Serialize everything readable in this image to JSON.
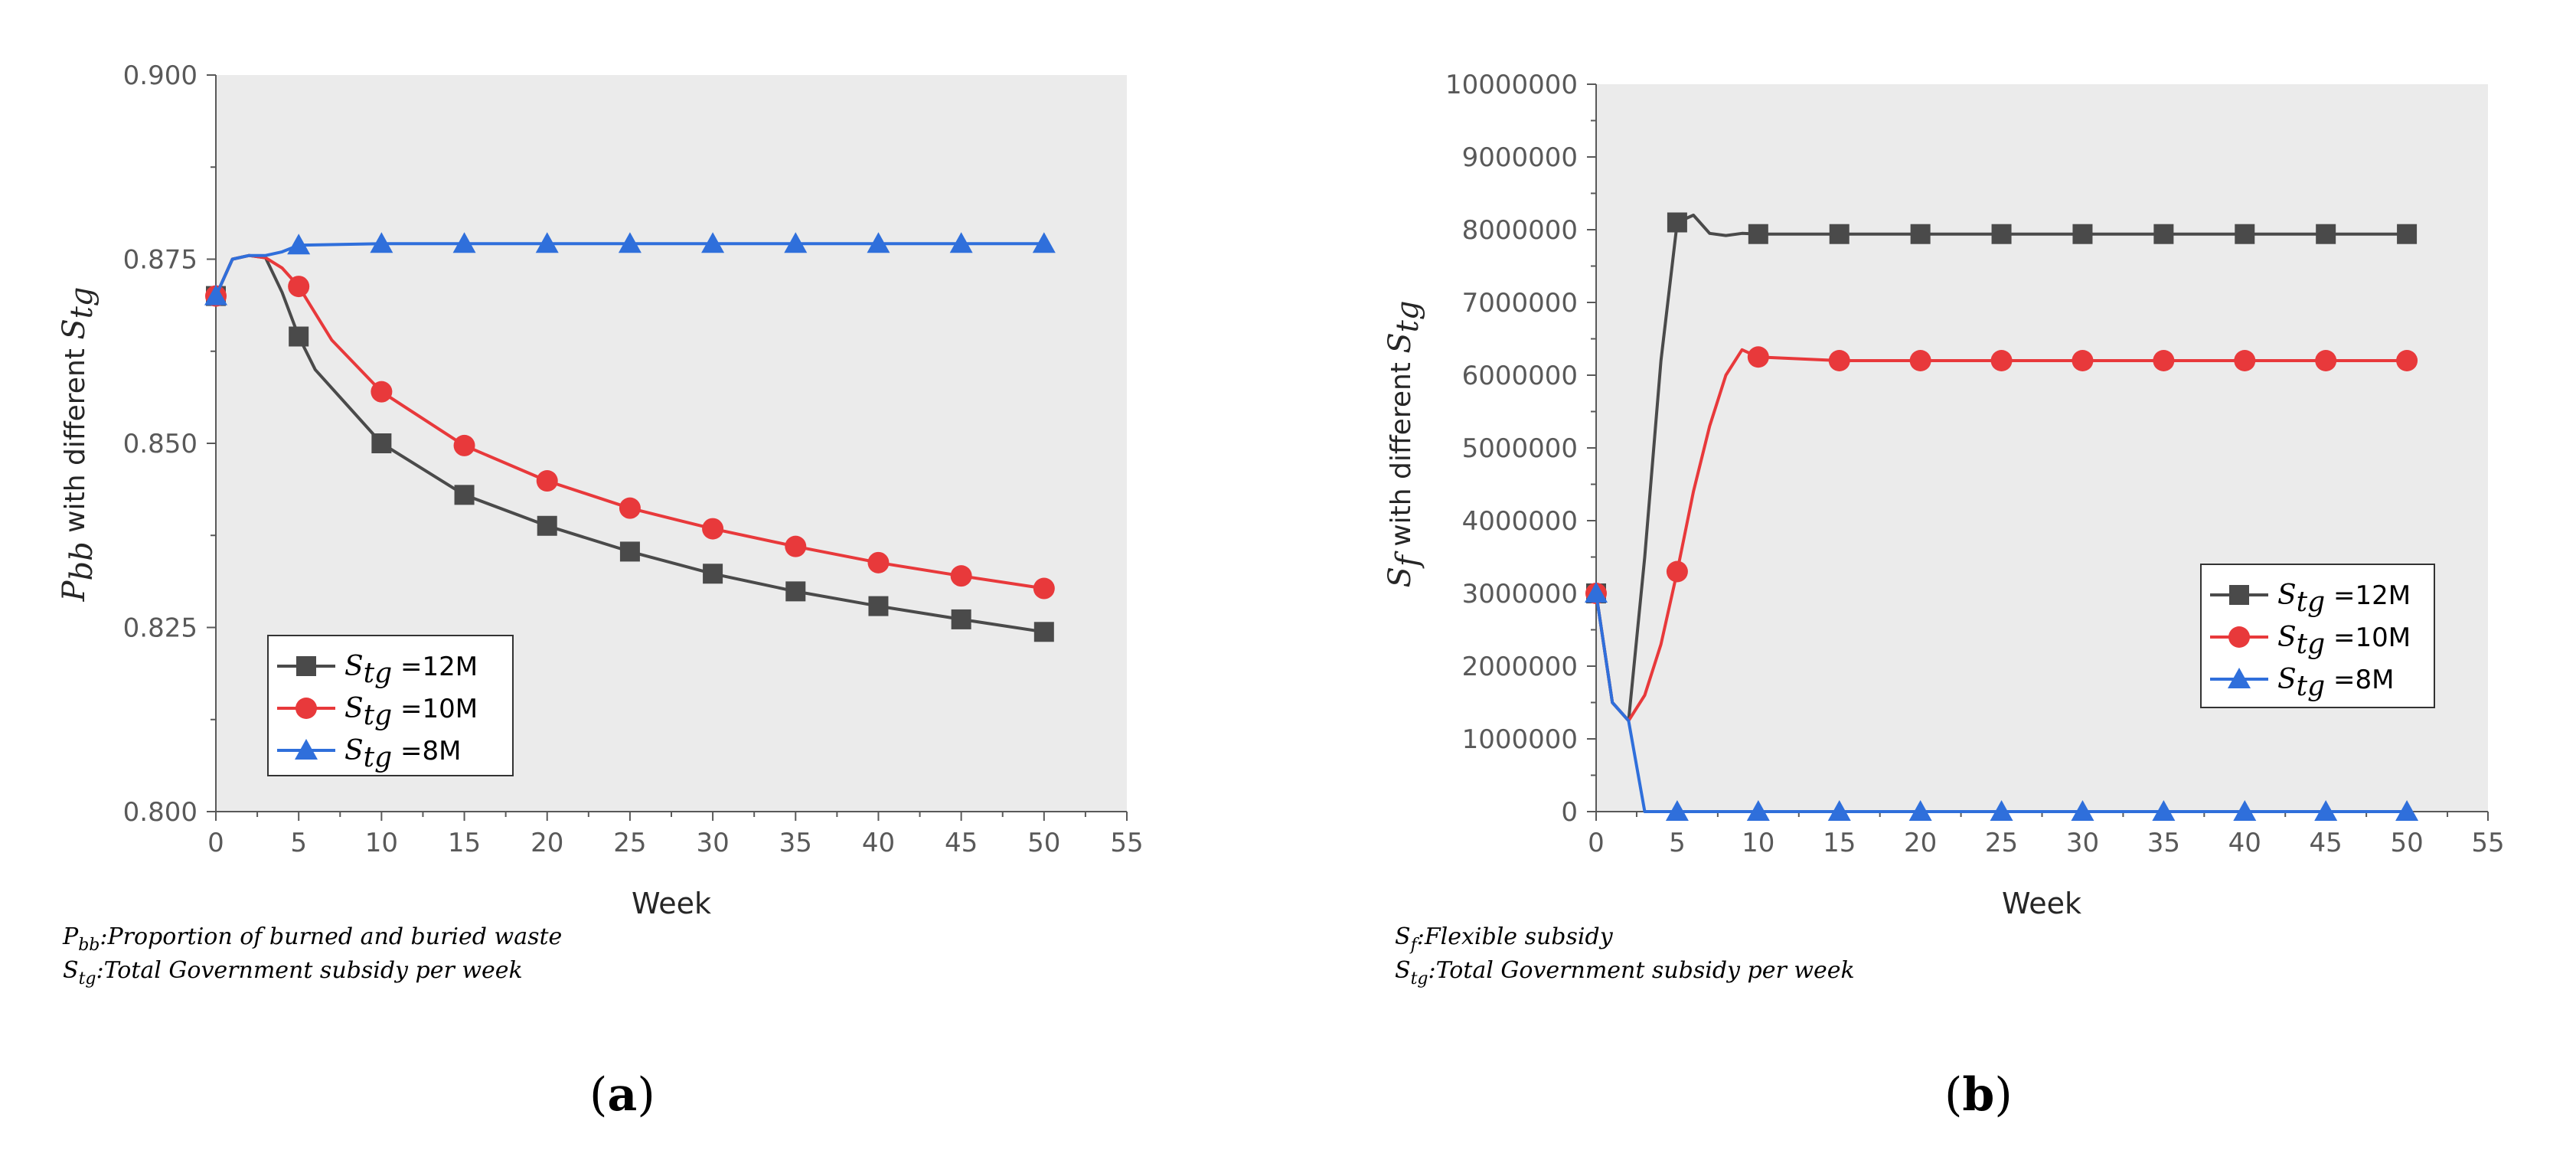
{
  "chart_data": [
    {
      "type": "line",
      "panel_label": "(a)",
      "panel_letter": "a",
      "xlabel": "Week",
      "ylabel": {
        "symbol": "P",
        "sub": "bb",
        "text": " with different ",
        "symbol2": "S",
        "sub2": "tg"
      },
      "xlim": [
        0,
        55
      ],
      "ylim": [
        0.8,
        0.9
      ],
      "xticks": [
        0,
        5,
        10,
        15,
        20,
        25,
        30,
        35,
        40,
        45,
        50,
        55
      ],
      "yticks": [
        0.8,
        0.825,
        0.85,
        0.875,
        0.9
      ],
      "ytick_labels": [
        "0.800",
        "0.825",
        "0.850",
        "0.875",
        "0.900"
      ],
      "legend_position": "bottom-left",
      "series": [
        {
          "name": "S_tg =12M",
          "legend_symbol": "S",
          "legend_sub": "tg",
          "legend_value": "=12M",
          "color": "#4a4a4a",
          "marker": "square",
          "x": [
            0,
            1,
            2,
            3,
            4,
            5,
            6,
            8,
            10,
            15,
            20,
            25,
            30,
            35,
            40,
            45,
            50
          ],
          "values": [
            0.87,
            0.875,
            0.8755,
            0.8752,
            0.8705,
            0.8645,
            0.86,
            0.855,
            0.85,
            0.843,
            0.8388,
            0.8353,
            0.8323,
            0.8299,
            0.8279,
            0.8261,
            0.8244
          ],
          "marker_x": [
            0,
            5,
            10,
            15,
            20,
            25,
            30,
            35,
            40,
            45,
            50
          ]
        },
        {
          "name": "S_tg =10M",
          "legend_symbol": "S",
          "legend_sub": "tg",
          "legend_value": "=10M",
          "color": "#e8393b",
          "marker": "circle",
          "x": [
            0,
            1,
            2,
            3,
            4,
            5,
            7,
            10,
            15,
            20,
            25,
            30,
            35,
            40,
            45,
            50
          ],
          "values": [
            0.87,
            0.875,
            0.8755,
            0.8752,
            0.8738,
            0.8713,
            0.864,
            0.857,
            0.8497,
            0.8449,
            0.8412,
            0.8384,
            0.836,
            0.8338,
            0.832,
            0.8303
          ],
          "marker_x": [
            0,
            5,
            10,
            15,
            20,
            25,
            30,
            35,
            40,
            45,
            50
          ]
        },
        {
          "name": "S_tg =8M",
          "legend_symbol": "S",
          "legend_sub": "tg",
          "legend_value": "=8M",
          "color": "#2f6fdb",
          "marker": "triangle",
          "x": [
            0,
            1,
            2,
            3,
            4,
            5,
            10,
            15,
            20,
            25,
            30,
            35,
            40,
            45,
            50
          ],
          "values": [
            0.87,
            0.875,
            0.8755,
            0.8755,
            0.876,
            0.8769,
            0.8771,
            0.8771,
            0.8771,
            0.8771,
            0.8771,
            0.8771,
            0.8771,
            0.8771,
            0.8771
          ],
          "marker_x": [
            0,
            5,
            10,
            15,
            20,
            25,
            30,
            35,
            40,
            45,
            50
          ]
        }
      ],
      "notes": [
        {
          "symbol": "P",
          "sub": "bb",
          "text": ":Proportion of burned and buried waste"
        },
        {
          "symbol": "S",
          "sub": "tg",
          "text": ":Total Government subsidy per week"
        }
      ]
    },
    {
      "type": "line",
      "panel_label": "(b)",
      "panel_letter": "b",
      "xlabel": "Week",
      "ylabel": {
        "symbol": "S",
        "sub": "f",
        "text": " with different ",
        "symbol2": "S",
        "sub2": "tg"
      },
      "xlim": [
        0,
        55
      ],
      "ylim": [
        0,
        10000000
      ],
      "xticks": [
        0,
        5,
        10,
        15,
        20,
        25,
        30,
        35,
        40,
        45,
        50,
        55
      ],
      "yticks": [
        0,
        1000000,
        2000000,
        3000000,
        4000000,
        5000000,
        6000000,
        7000000,
        8000000,
        9000000,
        10000000
      ],
      "ytick_labels": [
        "0",
        "1000000",
        "2000000",
        "3000000",
        "4000000",
        "5000000",
        "6000000",
        "7000000",
        "8000000",
        "9000000",
        "10000000"
      ],
      "legend_position": "middle-right",
      "series": [
        {
          "name": "S_tg =12M",
          "legend_symbol": "S",
          "legend_sub": "tg",
          "legend_value": "=12M",
          "color": "#4a4a4a",
          "marker": "square",
          "x": [
            0,
            1,
            2,
            3,
            4,
            5,
            6,
            7,
            8,
            9,
            10,
            15,
            20,
            25,
            30,
            35,
            40,
            45,
            50
          ],
          "values": [
            3000000,
            1500000,
            1250000,
            3500000,
            6200000,
            8100000,
            8200000,
            7950000,
            7920000,
            7950000,
            7940000,
            7940000,
            7940000,
            7940000,
            7940000,
            7940000,
            7940000,
            7940000,
            7940000
          ],
          "marker_x": [
            0,
            5,
            10,
            15,
            20,
            25,
            30,
            35,
            40,
            45,
            50
          ]
        },
        {
          "name": "S_tg =10M",
          "legend_symbol": "S",
          "legend_sub": "tg",
          "legend_value": "=10M",
          "color": "#e8393b",
          "marker": "circle",
          "x": [
            0,
            1,
            2,
            3,
            4,
            5,
            6,
            7,
            8,
            9,
            10,
            15,
            20,
            25,
            30,
            35,
            40,
            45,
            50
          ],
          "values": [
            3000000,
            1500000,
            1250000,
            1600000,
            2300000,
            3300000,
            4400000,
            5300000,
            6000000,
            6350000,
            6250000,
            6200000,
            6200000,
            6200000,
            6200000,
            6200000,
            6200000,
            6200000,
            6200000
          ],
          "marker_x": [
            0,
            5,
            10,
            15,
            20,
            25,
            30,
            35,
            40,
            45,
            50
          ]
        },
        {
          "name": "S_tg =8M",
          "legend_symbol": "S",
          "legend_sub": "tg",
          "legend_value": "=8M",
          "color": "#2f6fdb",
          "marker": "triangle",
          "x": [
            0,
            1,
            2,
            3,
            4,
            5,
            10,
            15,
            20,
            25,
            30,
            35,
            40,
            45,
            50
          ],
          "values": [
            3000000,
            1500000,
            1250000,
            0,
            0,
            0,
            0,
            0,
            0,
            0,
            0,
            0,
            0,
            0,
            0
          ],
          "marker_x": [
            0,
            5,
            10,
            15,
            20,
            25,
            30,
            35,
            40,
            45,
            50
          ]
        }
      ],
      "notes": [
        {
          "symbol": "S",
          "sub": "f",
          "text": ":Flexible subsidy"
        },
        {
          "symbol": "S",
          "sub": "tg",
          "text": ":Total Government subsidy per week"
        }
      ]
    }
  ]
}
